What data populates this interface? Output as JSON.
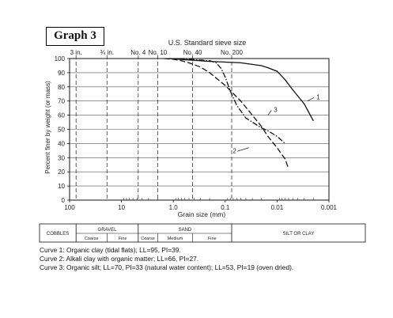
{
  "graph_label": "Graph 3",
  "chart_data": {
    "type": "line",
    "title": "U.S. Standard sieve size",
    "xlabel": "Grain size (mm)",
    "ylabel": "Percent finer by weight (or mass)",
    "x_scale": "log",
    "x_reversed": true,
    "xlim": [
      100,
      0.001
    ],
    "ylim": [
      0,
      100
    ],
    "x_ticks": [
      100,
      10,
      1.0,
      0.1,
      0.01,
      0.001
    ],
    "x_tick_labels": [
      "100",
      "10",
      "1.0",
      "0.1",
      "0.01",
      "0.001"
    ],
    "y_ticks": [
      0,
      10,
      20,
      30,
      40,
      50,
      60,
      70,
      80,
      90,
      100
    ],
    "y_tick_labels": [
      "0",
      "10",
      "20",
      "30",
      "40",
      "50",
      "60",
      "70",
      "80",
      "90",
      "100"
    ],
    "grid": "horizontal at every 10%",
    "sieves": [
      {
        "label": "3 in.",
        "size": 75
      },
      {
        "label": "¾ in.",
        "size": 19
      },
      {
        "label": "No. 4",
        "size": 4.75
      },
      {
        "label": "No. 10",
        "size": 2.0
      },
      {
        "label": "No. 40",
        "size": 0.425
      },
      {
        "label": "No. 200",
        "size": 0.075
      }
    ],
    "series": [
      {
        "name": "1",
        "style": "solid",
        "x": [
          1.2,
          0.5,
          0.2,
          0.1,
          0.05,
          0.02,
          0.015,
          0.01,
          0.007,
          0.005,
          0.003,
          0.002
        ],
        "y": [
          100,
          99,
          98,
          97.5,
          97,
          95,
          93.5,
          91,
          85,
          78,
          68,
          56
        ]
      },
      {
        "name": "2",
        "style": "long-dash",
        "x": [
          1.5,
          1.0,
          0.7,
          0.5,
          0.3,
          0.2,
          0.1,
          0.05,
          0.03,
          0.02,
          0.015,
          0.01,
          0.007,
          0.006
        ],
        "y": [
          100,
          99.5,
          98.5,
          97,
          94,
          90,
          81,
          70,
          60,
          52,
          45,
          37,
          29,
          22
        ]
      },
      {
        "name": "3",
        "style": "dash-dot",
        "x": [
          1.2,
          0.5,
          0.2,
          0.15,
          0.12,
          0.1,
          0.08,
          0.06,
          0.04,
          0.02,
          0.015,
          0.01,
          0.007
        ],
        "y": [
          100,
          99.5,
          98.5,
          97,
          93,
          87,
          77,
          67,
          58,
          51,
          49,
          45,
          40
        ]
      }
    ]
  },
  "classification": {
    "cobbles": "COBBLES",
    "gravel": "GRAVEL",
    "sand": "SAND",
    "silt_clay": "SILT OR CLAY",
    "coarse": "Coarse",
    "fine": "Fine",
    "medium": "Medium"
  },
  "captions": [
    "Curve 1:  Organic clay (tidal flats);  LL=95, PI=39.",
    "Curve 2:  Alkali clay with organic matter; LL=66, PI=27.",
    "Curve 3:  Organic silt;  LL=70, PI=33 (natural water content); LL=53, PI=19 (oven  dried)."
  ]
}
